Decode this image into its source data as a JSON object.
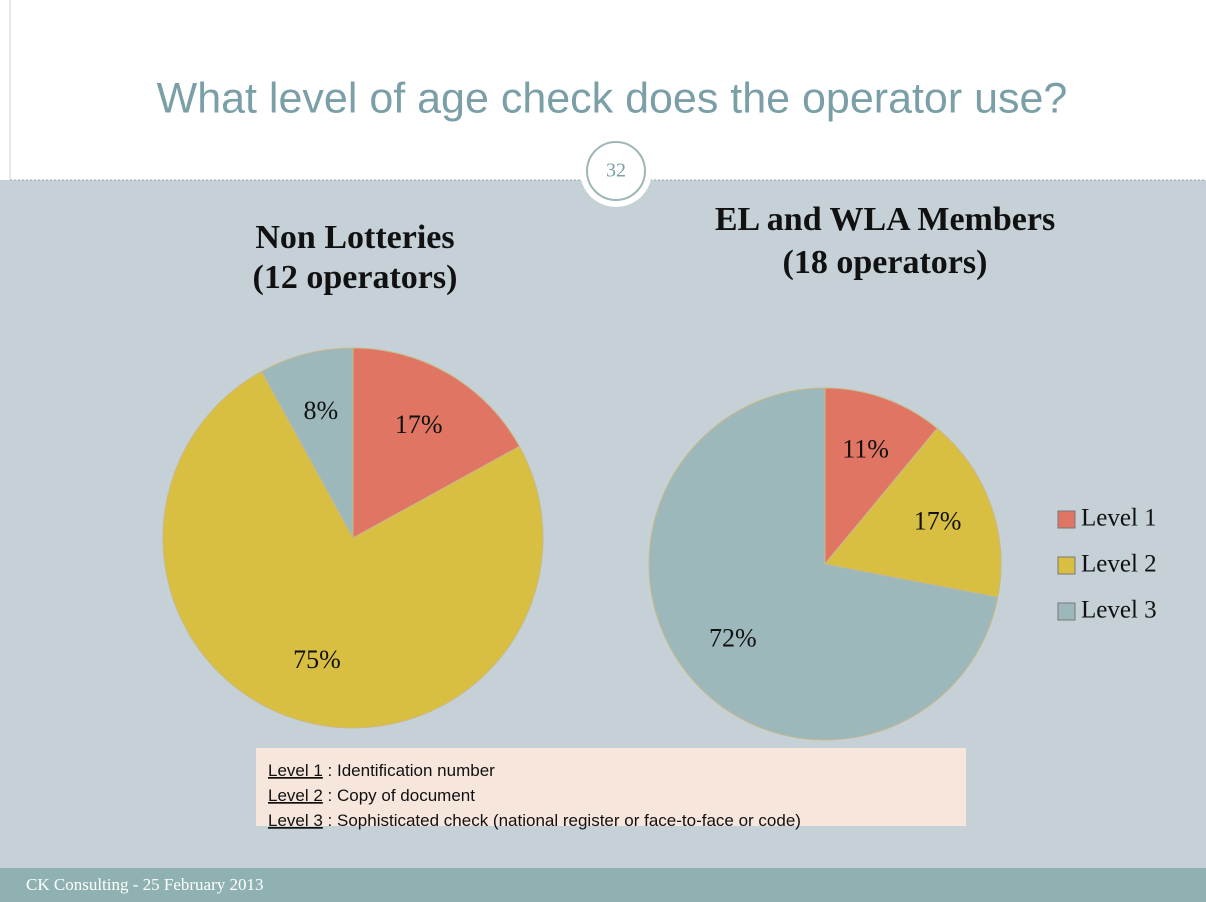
{
  "slide": {
    "title": "What level of age check does the operator use?",
    "page_number": "32",
    "footer": "CK Consulting - 25 February 2013"
  },
  "chart_data": [
    {
      "type": "pie",
      "title": "Non Lotteries",
      "subtitle": "(12 operators)",
      "categories": [
        "Level 1",
        "Level 2",
        "Level 3"
      ],
      "values": [
        17,
        75,
        8
      ],
      "value_labels": [
        "17%",
        "75%",
        "8%"
      ],
      "colors": [
        "#e07563",
        "#d8bf42",
        "#9cb8bb"
      ]
    },
    {
      "type": "pie",
      "title": "EL and WLA Members",
      "subtitle": "(18 operators)",
      "categories": [
        "Level 1",
        "Level 2",
        "Level 3"
      ],
      "values": [
        11,
        17,
        72
      ],
      "value_labels": [
        "11%",
        "17%",
        "72%"
      ],
      "colors": [
        "#e07563",
        "#d8bf42",
        "#9cb8bb"
      ],
      "legend": "right"
    }
  ],
  "definitions": {
    "separator": " : ",
    "items": [
      {
        "term": "Level 1",
        "text": "Identification number"
      },
      {
        "term": "Level 2",
        "text": "Copy of document"
      },
      {
        "term": "Level 3",
        "text": "Sophisticated check (national register or face-to-face or code)"
      }
    ]
  }
}
